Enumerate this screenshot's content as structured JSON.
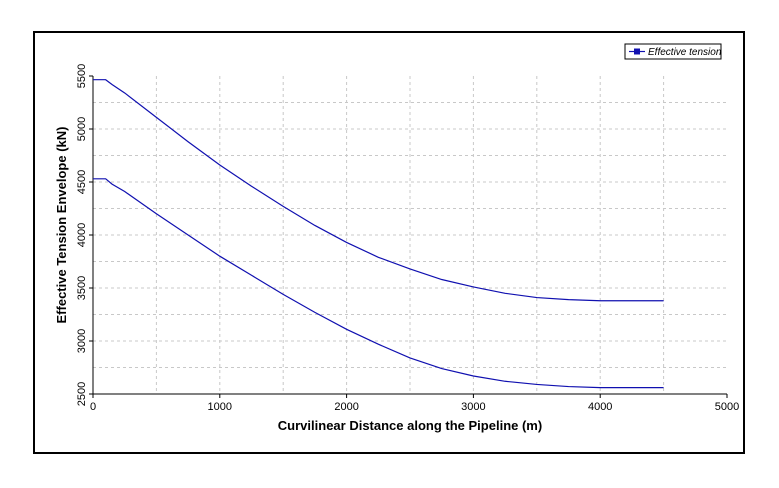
{
  "chart_data": {
    "type": "line",
    "title": "",
    "xlabel": "Curvilinear Distance along the Pipeline (m)",
    "ylabel": "Effective Tension Envelope (kN)",
    "xlim": [
      0,
      5000
    ],
    "ylim": [
      2500,
      5500
    ],
    "x_ticks": [
      "0",
      "1000",
      "2000",
      "3000",
      "4000",
      "5000"
    ],
    "y_ticks": [
      "2500",
      "3000",
      "3500",
      "4000",
      "4500",
      "5000",
      "5500"
    ],
    "grid": true,
    "legend_position": "top-right",
    "legend": [
      "Effective tension"
    ],
    "series_color": "#1010b0",
    "series": [
      {
        "name": "Effective tension",
        "x": [
          0,
          100,
          150,
          250,
          500,
          750,
          1000,
          1250,
          1500,
          1750,
          2000,
          2250,
          2500,
          2750,
          3000,
          3250,
          3500,
          3750,
          4000,
          4250,
          4500
        ],
        "y": [
          5465,
          5465,
          5420,
          5340,
          5110,
          4880,
          4660,
          4460,
          4270,
          4090,
          3930,
          3790,
          3680,
          3580,
          3510,
          3450,
          3410,
          3390,
          3380,
          3380,
          3380
        ]
      },
      {
        "name": "",
        "x": [
          0,
          100,
          150,
          250,
          500,
          750,
          1000,
          1250,
          1500,
          1750,
          2000,
          2250,
          2500,
          2750,
          3000,
          3250,
          3500,
          3750,
          4000,
          4250,
          4500
        ],
        "y": [
          4530,
          4530,
          4480,
          4410,
          4200,
          4000,
          3800,
          3620,
          3440,
          3270,
          3110,
          2970,
          2840,
          2740,
          2670,
          2620,
          2590,
          2570,
          2560,
          2560,
          2560
        ]
      }
    ]
  }
}
